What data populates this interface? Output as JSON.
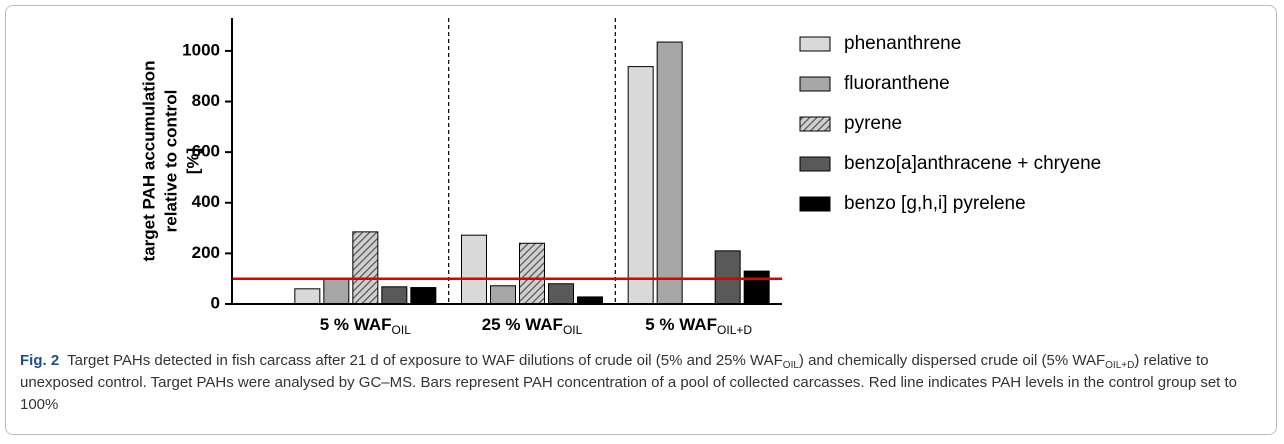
{
  "chart_data": {
    "type": "bar",
    "ylabel": [
      "target PAH accumulation",
      "relative to control",
      "[%]"
    ],
    "categories": [
      "5 % WAF",
      "25 % WAF",
      "5 % WAF"
    ],
    "category_subscripts": [
      "OIL",
      "OIL",
      "OIL+D"
    ],
    "series": [
      {
        "name": "phenanthrene",
        "color": "#d9d9d9",
        "values": [
          60,
          272,
          938
        ]
      },
      {
        "name": "fluoranthene",
        "color": "#a6a6a6",
        "values": [
          100,
          72,
          1035
        ]
      },
      {
        "name": "pyrene",
        "color": "#8c8c8c",
        "pattern": "hatch",
        "values": [
          285,
          240,
          null
        ]
      },
      {
        "name": "benzo[a]anthracene + chryene",
        "color": "#595959",
        "values": [
          68,
          80,
          210
        ]
      },
      {
        "name": "benzo [g,h,i] pyrelene",
        "color": "#000000",
        "values": [
          65,
          28,
          130
        ]
      }
    ],
    "ylim": [
      0,
      1130
    ],
    "yticks": [
      0,
      200,
      400,
      600,
      800,
      1000
    ],
    "reference_line": 100,
    "reference_color": "#e00000",
    "legend": "right"
  },
  "caption": {
    "label": "Fig. 2",
    "segments": [
      "Target PAHs detected in fish carcass after 21 d of exposure to WAF dilutions of crude oil (5% and 25% WAF",
      "OIL",
      ") and chemically dispersed crude oil (5% WAF",
      "OIL+D",
      ") relative to unexposed control. Target PAHs were analysed by GC–MS. Bars represent PAH concentration of a pool of collected carcasses. Red line indicates PAH levels in the control group set to 100%"
    ]
  }
}
